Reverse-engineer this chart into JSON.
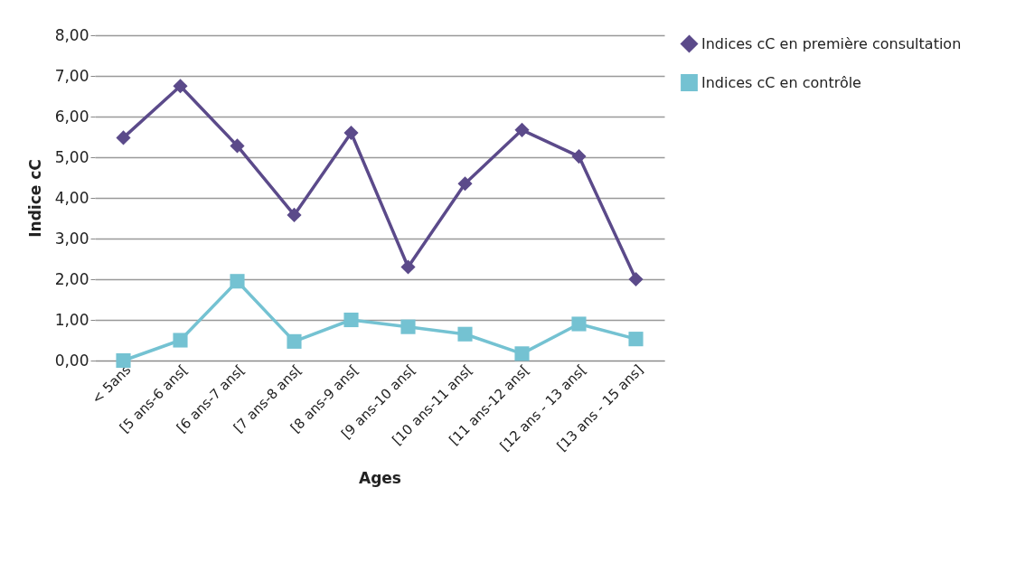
{
  "chart_data": {
    "type": "line",
    "xlabel": "Ages",
    "ylabel": "Indice cC",
    "categories": [
      "< 5ans",
      "[5 ans-6 ans[",
      "[6 ans-7 ans[",
      "[7 ans-8 ans[",
      "[8 ans-9 ans[",
      "[9 ans-10 ans[",
      "[10 ans-11 ans[",
      "[11 ans-12 ans[",
      "[12 ans - 13 ans[",
      "[13 ans - 15 ans]"
    ],
    "series": [
      {
        "name": "Indices cC en première consultation",
        "color": "#5b4a8a",
        "marker": "diamond",
        "values": [
          5.48,
          6.75,
          5.28,
          3.58,
          5.6,
          2.3,
          4.35,
          5.67,
          5.02,
          2.0
        ]
      },
      {
        "name": "Indices cC en contrôle",
        "color": "#74c2d2",
        "marker": "square",
        "values": [
          0.0,
          0.5,
          1.95,
          0.47,
          1.0,
          0.83,
          0.65,
          0.17,
          0.9,
          0.53
        ]
      }
    ],
    "ylim": [
      0,
      8
    ],
    "yticks": [
      {
        "value": 0,
        "label": "0,00"
      },
      {
        "value": 1,
        "label": "1,00"
      },
      {
        "value": 2,
        "label": "2,00"
      },
      {
        "value": 3,
        "label": "3,00"
      },
      {
        "value": 4,
        "label": "4,00"
      },
      {
        "value": 5,
        "label": "5,00"
      },
      {
        "value": 6,
        "label": "6,00"
      },
      {
        "value": 7,
        "label": "7,00"
      },
      {
        "value": 8,
        "label": "8,00"
      }
    ],
    "grid": "y",
    "legend": "right",
    "line_style": "solid"
  }
}
